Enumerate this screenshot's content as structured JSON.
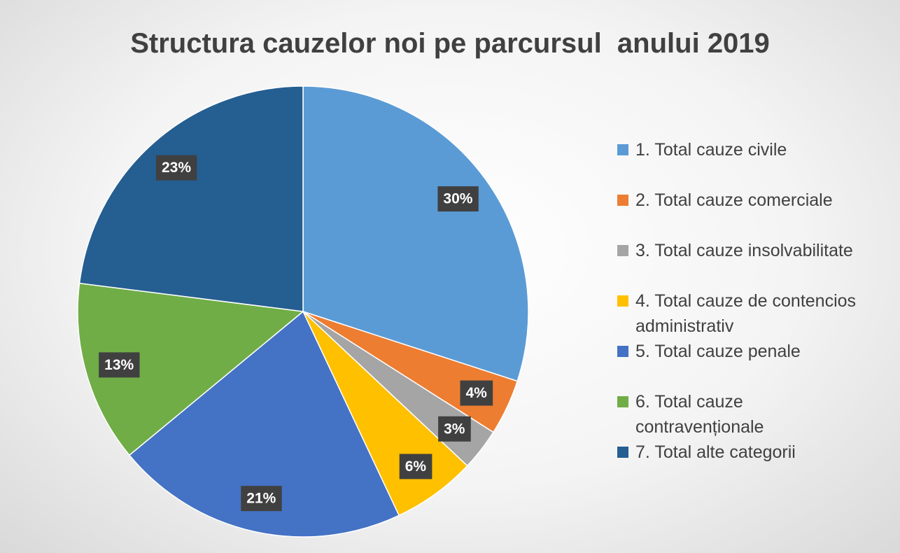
{
  "chart_data": {
    "type": "pie",
    "title": "Structura cauzelor noi pe parcursul  anului 2019",
    "categories": [
      "1. Total cauze civile",
      "2. Total cauze comerciale",
      "3. Total cauze insolvabilitate",
      "4. Total cauze de contencios administrativ",
      "5. Total cauze penale",
      "6. Total cauze contravenționale",
      "7. Total  alte categorii"
    ],
    "values": [
      30,
      4,
      3,
      6,
      21,
      13,
      23
    ],
    "value_labels": [
      "30%",
      "4%",
      "3%",
      "6%",
      "21%",
      "13%",
      "23%"
    ],
    "colors": [
      "#5b9bd5",
      "#ed7d31",
      "#a5a5a5",
      "#ffc000",
      "#4472c4",
      "#70ad47",
      "#255e91"
    ],
    "legend": "right"
  }
}
